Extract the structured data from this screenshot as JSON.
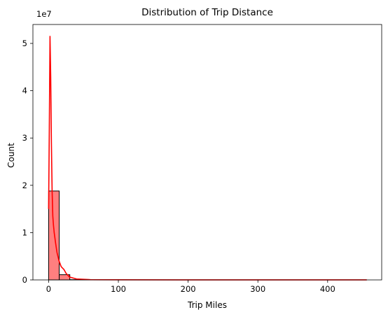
{
  "chart_data": {
    "type": "bar",
    "subtype": "histogram",
    "title": "Distribution of Trip Distance",
    "xlabel": "Trip Miles",
    "ylabel": "Count",
    "y_offset_text": "1e7",
    "xlim": [
      -22.5,
      477.5
    ],
    "ylim": [
      0,
      5.4
    ],
    "x_ticks": [
      0,
      100,
      200,
      300,
      400
    ],
    "x_tick_labels": [
      "0",
      "100",
      "200",
      "300",
      "400"
    ],
    "y_ticks": [
      0,
      1,
      2,
      3,
      4,
      5
    ],
    "y_tick_labels": [
      "0",
      "1",
      "2",
      "3",
      "4",
      "5"
    ],
    "bin_edges": [
      0,
      15.2,
      30.4,
      45.6,
      60.8,
      76,
      91.2,
      106.4,
      121.6,
      136.8,
      152,
      167.2,
      182.4,
      197.6,
      212.8,
      228,
      243.2,
      258.4,
      273.6,
      288.8,
      304,
      319.2,
      334.4,
      349.6,
      364.8,
      380,
      395.2,
      410.4,
      425.6,
      440.8,
      456
    ],
    "values": [
      1.88,
      0.11,
      0.005,
      0.001,
      0.0005,
      0.0003,
      0.0002,
      0.0001,
      0.0001,
      0.0001,
      0.0001,
      0.0001,
      0.0001,
      0.0001,
      0.0001,
      0.0001,
      0.0001,
      0.0001,
      0.0001,
      0.0001,
      0.0001,
      0.0001,
      0.0001,
      0.0001,
      0.0001,
      0.0001,
      0.0001,
      0.0001,
      0.0001,
      0.0001
    ],
    "kde": {
      "x": [
        0,
        1,
        2,
        3,
        4,
        5,
        6,
        7,
        8,
        10,
        12,
        15,
        18,
        22,
        25,
        30,
        40,
        60,
        100,
        200,
        300,
        400,
        456
      ],
      "y": [
        1.5,
        3.2,
        5.15,
        4.3,
        2.9,
        1.9,
        1.35,
        1.15,
        1.0,
        0.78,
        0.58,
        0.4,
        0.28,
        0.22,
        0.14,
        0.06,
        0.02,
        0.005,
        0.002,
        0.001,
        0.0005,
        0.0005,
        0.0005
      ]
    },
    "colors": {
      "bar_fill": "#ff7f7f",
      "bar_edge": "#000000",
      "kde_line": "#ff0000"
    },
    "grid": false,
    "legend": "none"
  }
}
